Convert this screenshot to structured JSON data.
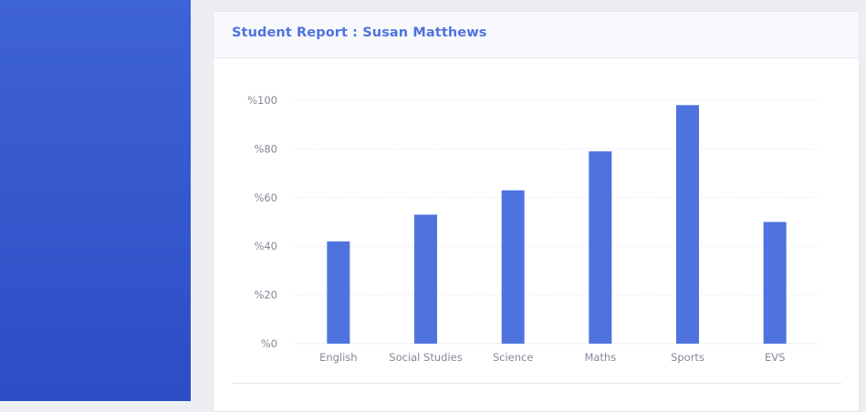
{
  "report": {
    "title": "Student Report : Susan Matthews"
  },
  "colors": {
    "sidebar": "#3a5ccc",
    "accent": "#4e73df",
    "bar": "#4e73df",
    "grid": "#eaecf4",
    "tick_text": "#858796"
  },
  "chart_data": {
    "type": "bar",
    "title": "",
    "xlabel": "",
    "ylabel": "",
    "categories": [
      "English",
      "Social Studies",
      "Science",
      "Maths",
      "Sports",
      "EVS"
    ],
    "values": [
      42,
      53,
      63,
      79,
      98,
      50
    ],
    "ylim": [
      0,
      100
    ],
    "yticks": [
      0,
      20,
      40,
      60,
      80,
      100
    ],
    "ytick_labels": [
      "%0",
      "%20",
      "%40",
      "%60",
      "%80",
      "%100"
    ],
    "grid": true,
    "legend": "none"
  }
}
